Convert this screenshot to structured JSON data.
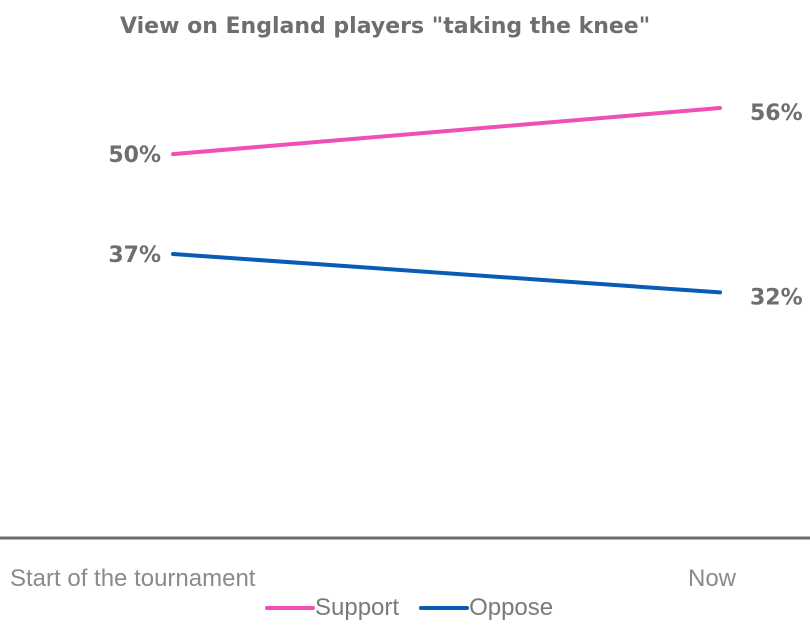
{
  "chart_data": {
    "type": "line",
    "title": "View on England players \"taking the knee\"",
    "categories": [
      "Start of the tournament",
      "Now"
    ],
    "series": [
      {
        "name": "Support",
        "values": [
          50,
          56
        ],
        "labels": [
          "50%",
          "56%"
        ],
        "color": "#f04fb6"
      },
      {
        "name": "Oppose",
        "values": [
          37,
          32
        ],
        "labels": [
          "37%",
          "32%"
        ],
        "color": "#0a5bb5"
      }
    ],
    "ylim": [
      0,
      70
    ],
    "grid": false,
    "legend": "bottom"
  }
}
